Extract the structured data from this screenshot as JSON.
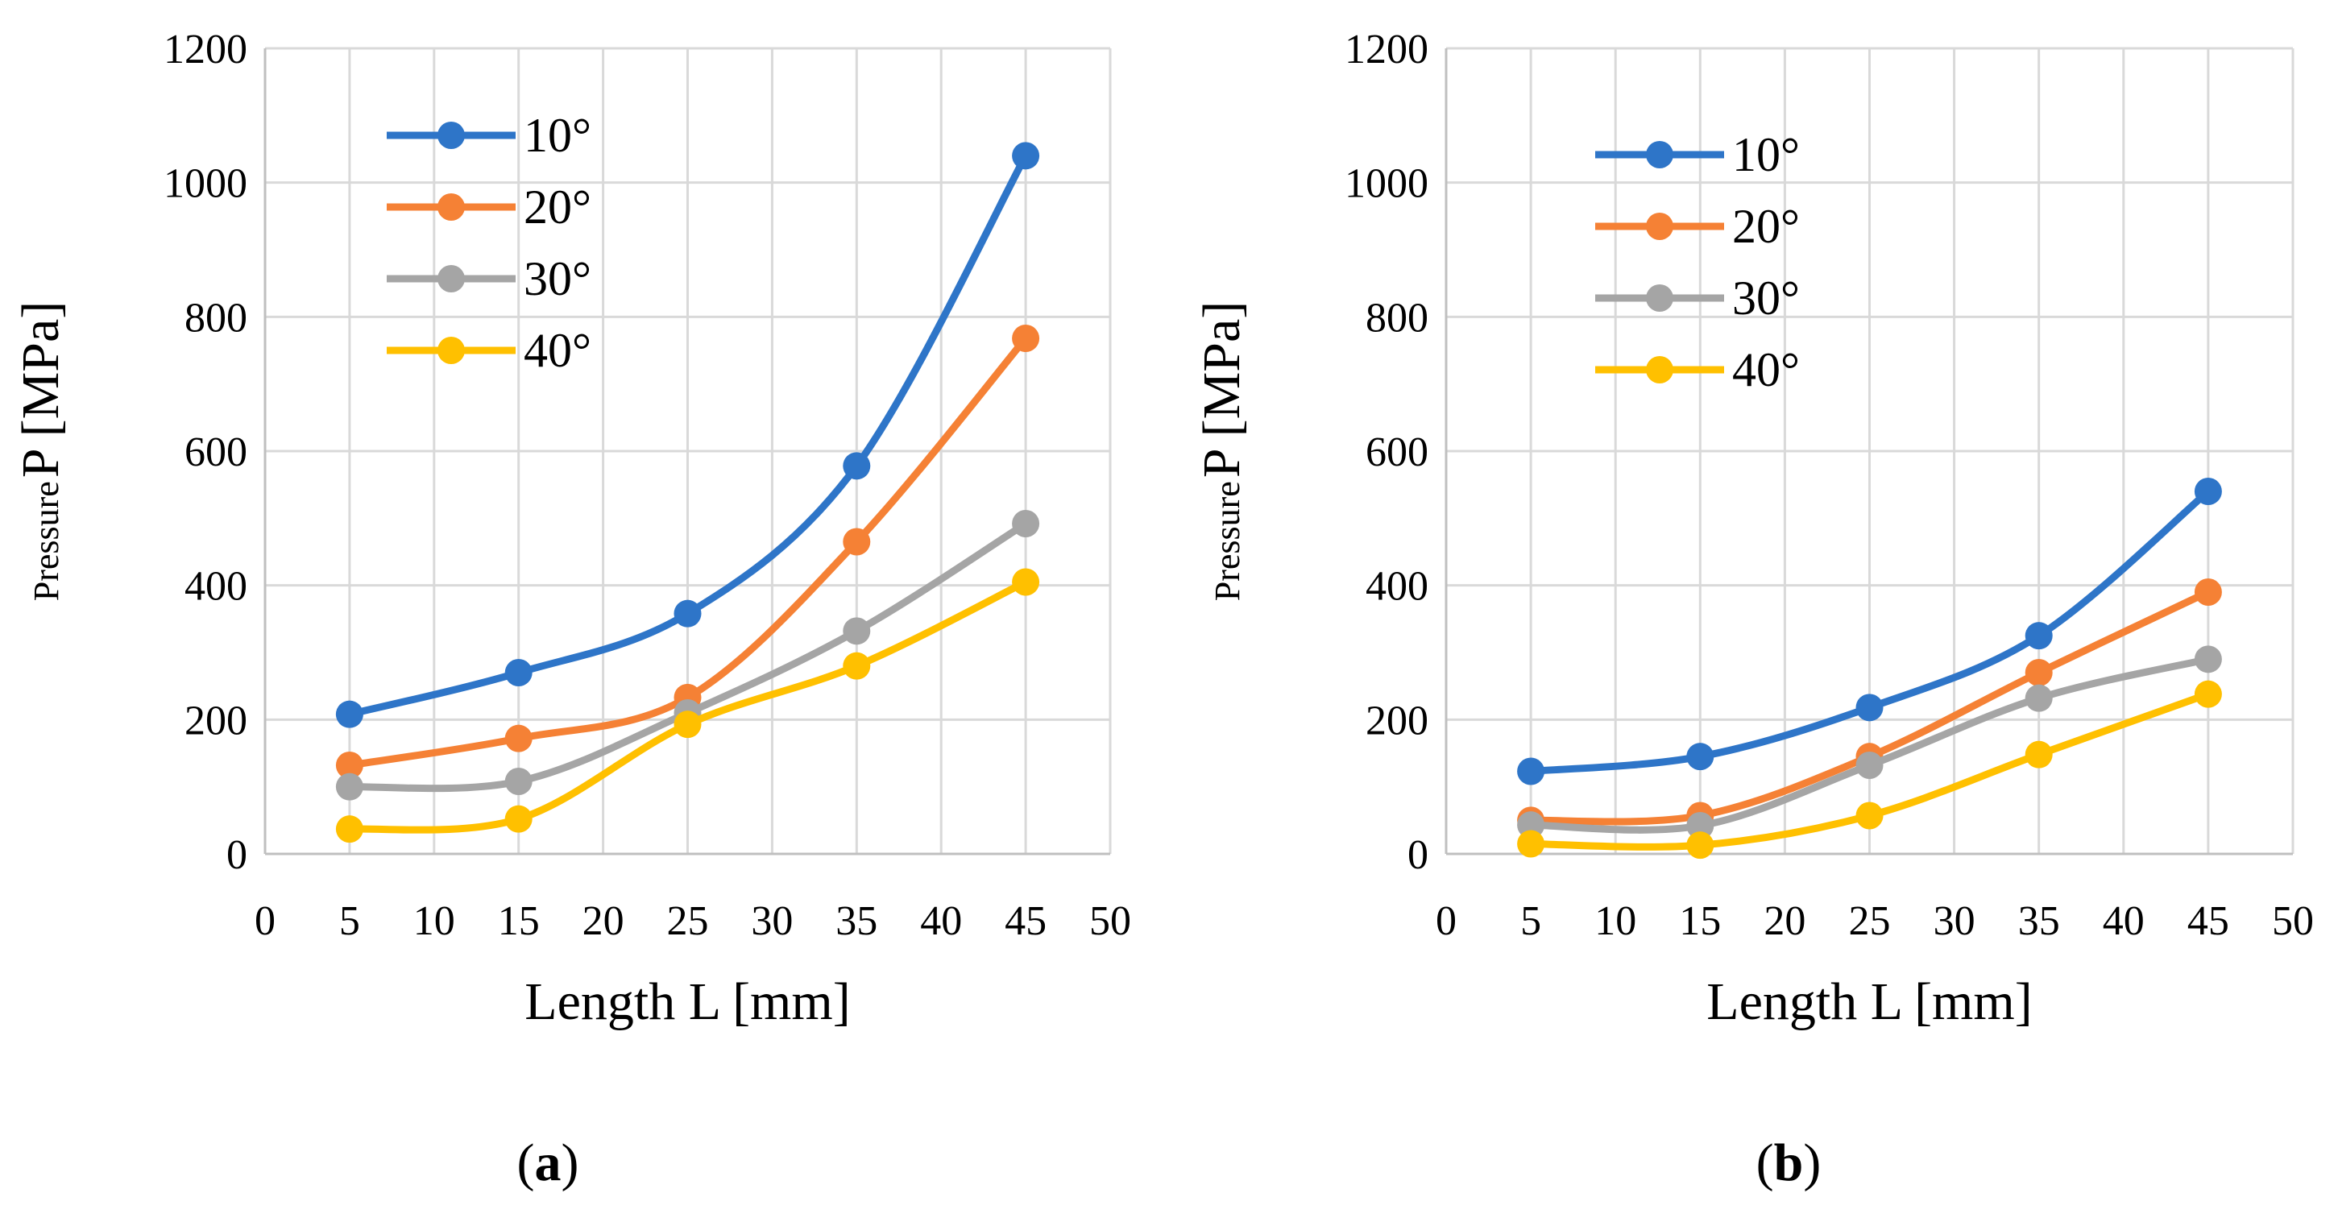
{
  "colors": {
    "series": [
      "#2E75C8",
      "#F58135",
      "#A5A5A5",
      "#FFC000"
    ],
    "grid": "#D9D9D9",
    "axis": "#BFBFBF"
  },
  "chart_data": [
    {
      "type": "line",
      "panel_label": {
        "open": "(",
        "letter": "a",
        "close": ")"
      },
      "xlabel": "Length L [mm]",
      "ylabel": {
        "small": "Pressure",
        "big": "P [MPa]"
      },
      "xlim": [
        0,
        50
      ],
      "ylim": [
        0,
        1200
      ],
      "xticks": [
        0,
        5,
        10,
        15,
        20,
        25,
        30,
        35,
        40,
        45,
        50
      ],
      "yticks": [
        0,
        200,
        400,
        600,
        800,
        1000,
        1200
      ],
      "grid": true,
      "legend_position": "top-left",
      "x": [
        5,
        15,
        25,
        35,
        45
      ],
      "series": [
        {
          "name": "10°",
          "values": [
            208,
            270,
            358,
            578,
            1040
          ]
        },
        {
          "name": "20°",
          "values": [
            132,
            172,
            233,
            465,
            768
          ]
        },
        {
          "name": "30°",
          "values": [
            100,
            108,
            210,
            332,
            492
          ]
        },
        {
          "name": "40°",
          "values": [
            37,
            52,
            193,
            280,
            405
          ]
        }
      ]
    },
    {
      "type": "line",
      "panel_label": {
        "open": "(",
        "letter": "b",
        "close": ")"
      },
      "xlabel": "Length L [mm]",
      "ylabel": {
        "small": "Pressure",
        "big": "P [MPa]"
      },
      "xlim": [
        0,
        50
      ],
      "ylim": [
        0,
        1200
      ],
      "xticks": [
        0,
        5,
        10,
        15,
        20,
        25,
        30,
        35,
        40,
        45,
        50
      ],
      "yticks": [
        0,
        200,
        400,
        600,
        800,
        1000,
        1200
      ],
      "grid": true,
      "legend_position": "top-left",
      "x": [
        5,
        15,
        25,
        35,
        45
      ],
      "series": [
        {
          "name": "10°",
          "values": [
            123,
            145,
            218,
            325,
            540
          ]
        },
        {
          "name": "20°",
          "values": [
            50,
            57,
            145,
            270,
            390
          ]
        },
        {
          "name": "30°",
          "values": [
            43,
            42,
            132,
            232,
            290
          ]
        },
        {
          "name": "40°",
          "values": [
            15,
            13,
            57,
            148,
            238
          ]
        }
      ]
    }
  ]
}
